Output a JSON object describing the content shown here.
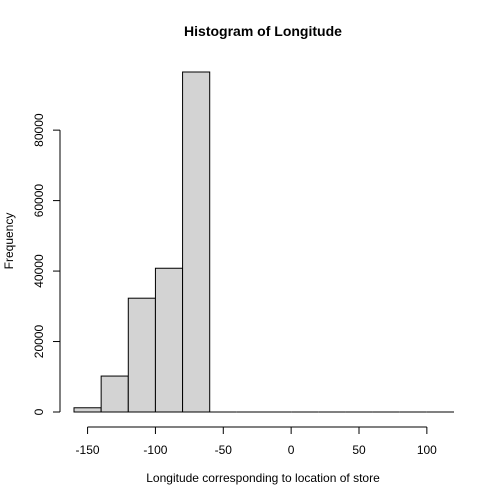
{
  "chart_data": {
    "type": "bar",
    "title": "Histogram of Longitude",
    "xlabel": "Longitude corresponding to location of store",
    "ylabel": "Frequency",
    "bins": [
      {
        "start": -160,
        "end": -140,
        "count": 1200
      },
      {
        "start": -140,
        "end": -120,
        "count": 10200
      },
      {
        "start": -120,
        "end": -100,
        "count": 32300
      },
      {
        "start": -100,
        "end": -80,
        "count": 40800
      },
      {
        "start": -80,
        "end": -60,
        "count": 96500
      },
      {
        "start": -60,
        "end": -40,
        "count": 0
      },
      {
        "start": -40,
        "end": -20,
        "count": 0
      },
      {
        "start": -20,
        "end": 0,
        "count": 0
      },
      {
        "start": 0,
        "end": 20,
        "count": 0
      },
      {
        "start": 20,
        "end": 40,
        "count": 0
      },
      {
        "start": 40,
        "end": 60,
        "count": 0
      },
      {
        "start": 60,
        "end": 80,
        "count": 0
      },
      {
        "start": 80,
        "end": 100,
        "count": 0
      },
      {
        "start": 100,
        "end": 120,
        "count": 0
      }
    ],
    "xlim": [
      -160,
      120
    ],
    "ylim": [
      0,
      96500
    ],
    "xticks": [
      -150,
      -100,
      -50,
      0,
      50,
      100
    ],
    "yticks": [
      0,
      20000,
      40000,
      60000,
      80000
    ],
    "grid": false,
    "legend": "none",
    "bar_color": "#d3d3d3"
  }
}
